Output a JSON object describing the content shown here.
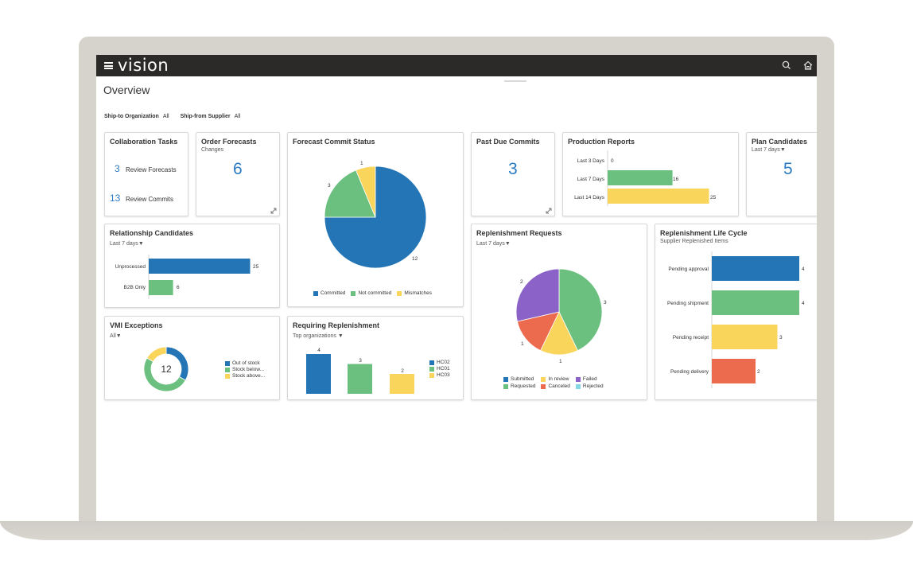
{
  "app": {
    "logo": "vision",
    "search_icon": "search-icon",
    "home_icon": "home-icon"
  },
  "page": {
    "title": "Overview"
  },
  "filters": [
    {
      "label": "Ship-to Organization",
      "value": "All"
    },
    {
      "label": "Ship-from Supplier",
      "value": "All"
    }
  ],
  "colors": {
    "blue": "#2375b5",
    "green": "#6cc07f",
    "yellow": "#fad55c",
    "purple": "#8b63c8",
    "red": "#ec6b4f",
    "cyan": "#86d6e6",
    "accent": "#2b7bc2"
  },
  "collaboration_tasks": {
    "title": "Collaboration Tasks",
    "items": [
      {
        "count": "3",
        "label": "Review Forecasts"
      },
      {
        "count": "13",
        "label": "Review Commits"
      }
    ]
  },
  "order_forecasts": {
    "title": "Order Forecasts",
    "subtitle": "Changes",
    "value": "6"
  },
  "forecast_commit": {
    "title": "Forecast Commit Status",
    "legend": [
      "Committed",
      "Not committed",
      "Mismatches"
    ],
    "labels": [
      "12",
      "3",
      "1"
    ]
  },
  "past_due_commits": {
    "title": "Past Due Commits",
    "value": "3"
  },
  "production_reports": {
    "title": "Production Reports",
    "rows": [
      {
        "label": "Last 3 Days",
        "value": "0"
      },
      {
        "label": "Last 7 Days",
        "value": "16"
      },
      {
        "label": "Last 14 Days",
        "value": "25"
      }
    ]
  },
  "plan_candidates": {
    "title": "Plan Candidates",
    "filter": "Last 7 days",
    "value": "5"
  },
  "relationship_candidates": {
    "title": "Relationship Candidates",
    "filter": "Last 7 days",
    "rows": [
      {
        "label": "Unprocessed",
        "value": "25"
      },
      {
        "label": "B2B Only",
        "value": "6"
      }
    ]
  },
  "replenishment_requests": {
    "title": "Replenishment Requests",
    "filter": "Last 7 days",
    "legend": [
      "Submitted",
      "In review",
      "Failed",
      "Requested",
      "Canceled",
      "Rejected"
    ],
    "labels": [
      "3",
      "1",
      "1",
      "2"
    ]
  },
  "replenishment_lifecycle": {
    "title": "Replenishment Life Cycle",
    "subtitle": "Supplier Replenished Items",
    "rows": [
      {
        "label": "Pending approval",
        "value": "4"
      },
      {
        "label": "Pending shipment",
        "value": "4"
      },
      {
        "label": "Pending receipt",
        "value": "3"
      },
      {
        "label": "Pending delivery",
        "value": "2"
      }
    ]
  },
  "vmi_exceptions": {
    "title": "VMI Exceptions",
    "filter": "All",
    "center": "12",
    "legend": [
      "Out of stock",
      "Stock below...",
      "Stock above..."
    ]
  },
  "requiring_replenishment": {
    "title": "Requiring Replenishment",
    "filter": "Top organizations",
    "legend": [
      "HC02",
      "HC01",
      "HC03"
    ],
    "labels": [
      "4",
      "3",
      "2"
    ]
  },
  "chart_data": [
    {
      "type": "pie",
      "title": "Forecast Commit Status",
      "categories": [
        "Committed",
        "Not committed",
        "Mismatches"
      ],
      "values": [
        12,
        3,
        1
      ]
    },
    {
      "type": "bar",
      "title": "Production Reports",
      "categories": [
        "Last 3 Days",
        "Last 7 Days",
        "Last 14 Days"
      ],
      "values": [
        0,
        16,
        25
      ]
    },
    {
      "type": "bar",
      "title": "Relationship Candidates",
      "categories": [
        "Unprocessed",
        "B2B Only"
      ],
      "values": [
        25,
        6
      ]
    },
    {
      "type": "pie",
      "title": "Replenishment Requests",
      "categories": [
        "Requested",
        "In review",
        "Canceled",
        "Failed"
      ],
      "values": [
        3,
        1,
        1,
        2
      ]
    },
    {
      "type": "bar",
      "title": "Replenishment Life Cycle",
      "categories": [
        "Pending approval",
        "Pending shipment",
        "Pending receipt",
        "Pending delivery"
      ],
      "values": [
        4,
        4,
        3,
        2
      ]
    },
    {
      "type": "pie",
      "title": "VMI Exceptions",
      "categories": [
        "Out of stock",
        "Stock below...",
        "Stock above..."
      ],
      "values": [
        4,
        6,
        2
      ]
    },
    {
      "type": "bar",
      "title": "Requiring Replenishment",
      "categories": [
        "HC02",
        "HC01",
        "HC03"
      ],
      "values": [
        4,
        3,
        2
      ]
    }
  ]
}
